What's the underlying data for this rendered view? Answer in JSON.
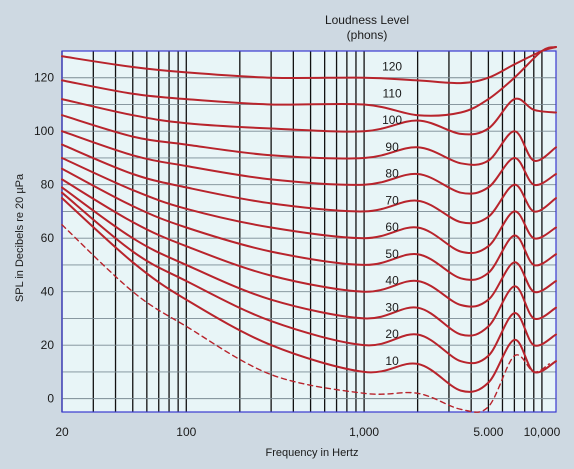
{
  "chart_data": {
    "type": "line",
    "title_lines": [
      "Loudness Level",
      "(phons)"
    ],
    "xlabel": "Frequency in Hertz",
    "ylabel": "SPL in Decibels re 20 µPa",
    "x_scale": "log",
    "xlim": [
      20,
      12000
    ],
    "ylim": [
      -5,
      130
    ],
    "x_ticks": [
      {
        "value": 20,
        "label": "20"
      },
      {
        "value": 100,
        "label": "100"
      },
      {
        "value": 1000,
        "label": "1,000"
      },
      {
        "value": 5000,
        "label": "5.000"
      },
      {
        "value": 10000,
        "label": "10,000"
      }
    ],
    "y_ticks": [
      0,
      20,
      40,
      60,
      80,
      100,
      120
    ],
    "grid": true,
    "colors": {
      "plot_background": "#e8f5f7",
      "page_background": "#ced9e2",
      "plot_border": "#3a3ad0",
      "grid_line": "#111111",
      "curve": "#b8242c"
    },
    "series": [
      {
        "name": "120",
        "x": [
          20,
          50,
          100,
          300,
          1000,
          2000,
          3500,
          5000,
          7000,
          10000,
          12000
        ],
        "y": [
          128,
          124,
          122,
          120,
          120,
          119,
          118,
          120,
          125,
          130,
          132
        ]
      },
      {
        "name": "110",
        "x": [
          20,
          50,
          100,
          300,
          1000,
          2000,
          3500,
          5000,
          7000,
          10000,
          12000
        ],
        "y": [
          119,
          114,
          112,
          110,
          110,
          106,
          107,
          112,
          120,
          130,
          132
        ]
      },
      {
        "name": "100",
        "x": [
          20,
          50,
          100,
          300,
          1000,
          2000,
          3500,
          5000,
          7000,
          9000,
          12000
        ],
        "y": [
          112,
          106,
          103,
          101,
          100,
          104,
          99,
          101,
          112,
          108,
          107
        ]
      },
      {
        "name": "90",
        "x": [
          20,
          50,
          100,
          300,
          1000,
          2000,
          3500,
          5000,
          7000,
          9000,
          12000
        ],
        "y": [
          106,
          98,
          95,
          91,
          90,
          94,
          88,
          89,
          100,
          89,
          94
        ]
      },
      {
        "name": "80",
        "x": [
          20,
          50,
          100,
          300,
          1000,
          2000,
          3500,
          5000,
          7000,
          9000,
          12000
        ],
        "y": [
          100,
          91,
          87,
          82,
          80,
          84,
          77,
          79,
          90,
          80,
          84
        ]
      },
      {
        "name": "70",
        "x": [
          20,
          50,
          100,
          300,
          1000,
          2000,
          3500,
          5000,
          7000,
          9000,
          12000
        ],
        "y": [
          95,
          84,
          79,
          73,
          70,
          74,
          66,
          68,
          80,
          70,
          75
        ]
      },
      {
        "name": "60",
        "x": [
          20,
          50,
          100,
          300,
          1000,
          2000,
          3500,
          5000,
          7000,
          9000,
          12000
        ],
        "y": [
          90,
          78,
          71,
          64,
          60,
          64,
          55,
          57,
          70,
          60,
          64
        ]
      },
      {
        "name": "50",
        "x": [
          20,
          50,
          100,
          300,
          1000,
          2000,
          3500,
          5000,
          7000,
          9000,
          12000
        ],
        "y": [
          86,
          72,
          64,
          55,
          50,
          54,
          45,
          47,
          61,
          50,
          54
        ]
      },
      {
        "name": "40",
        "x": [
          20,
          50,
          100,
          300,
          1000,
          2000,
          3500,
          5000,
          7000,
          9000,
          12000
        ],
        "y": [
          82,
          66,
          57,
          46,
          40,
          44,
          35,
          37,
          51,
          40,
          44
        ]
      },
      {
        "name": "30",
        "x": [
          20,
          50,
          100,
          300,
          1000,
          2000,
          3500,
          5000,
          7000,
          9000,
          12000
        ],
        "y": [
          79,
          60,
          50,
          37,
          30,
          34,
          24,
          27,
          42,
          30,
          34
        ]
      },
      {
        "name": "20",
        "x": [
          20,
          50,
          100,
          300,
          1000,
          2000,
          3500,
          5000,
          7000,
          9000,
          12000
        ],
        "y": [
          77,
          55,
          44,
          29,
          20,
          24,
          14,
          16,
          32,
          20,
          24
        ]
      },
      {
        "name": "10",
        "x": [
          20,
          50,
          100,
          300,
          1000,
          2000,
          3500,
          5000,
          7000,
          9000,
          12000
        ],
        "y": [
          75,
          51,
          37,
          20,
          10,
          13,
          3,
          6,
          22,
          10,
          14
        ]
      },
      {
        "name": "",
        "dashed": true,
        "x": [
          20,
          50,
          100,
          300,
          1000,
          2000,
          3500,
          5000,
          7000,
          9000,
          11000
        ],
        "y": [
          65,
          40,
          27,
          9,
          2,
          2,
          -4,
          -3,
          16,
          10,
          13
        ]
      }
    ]
  }
}
